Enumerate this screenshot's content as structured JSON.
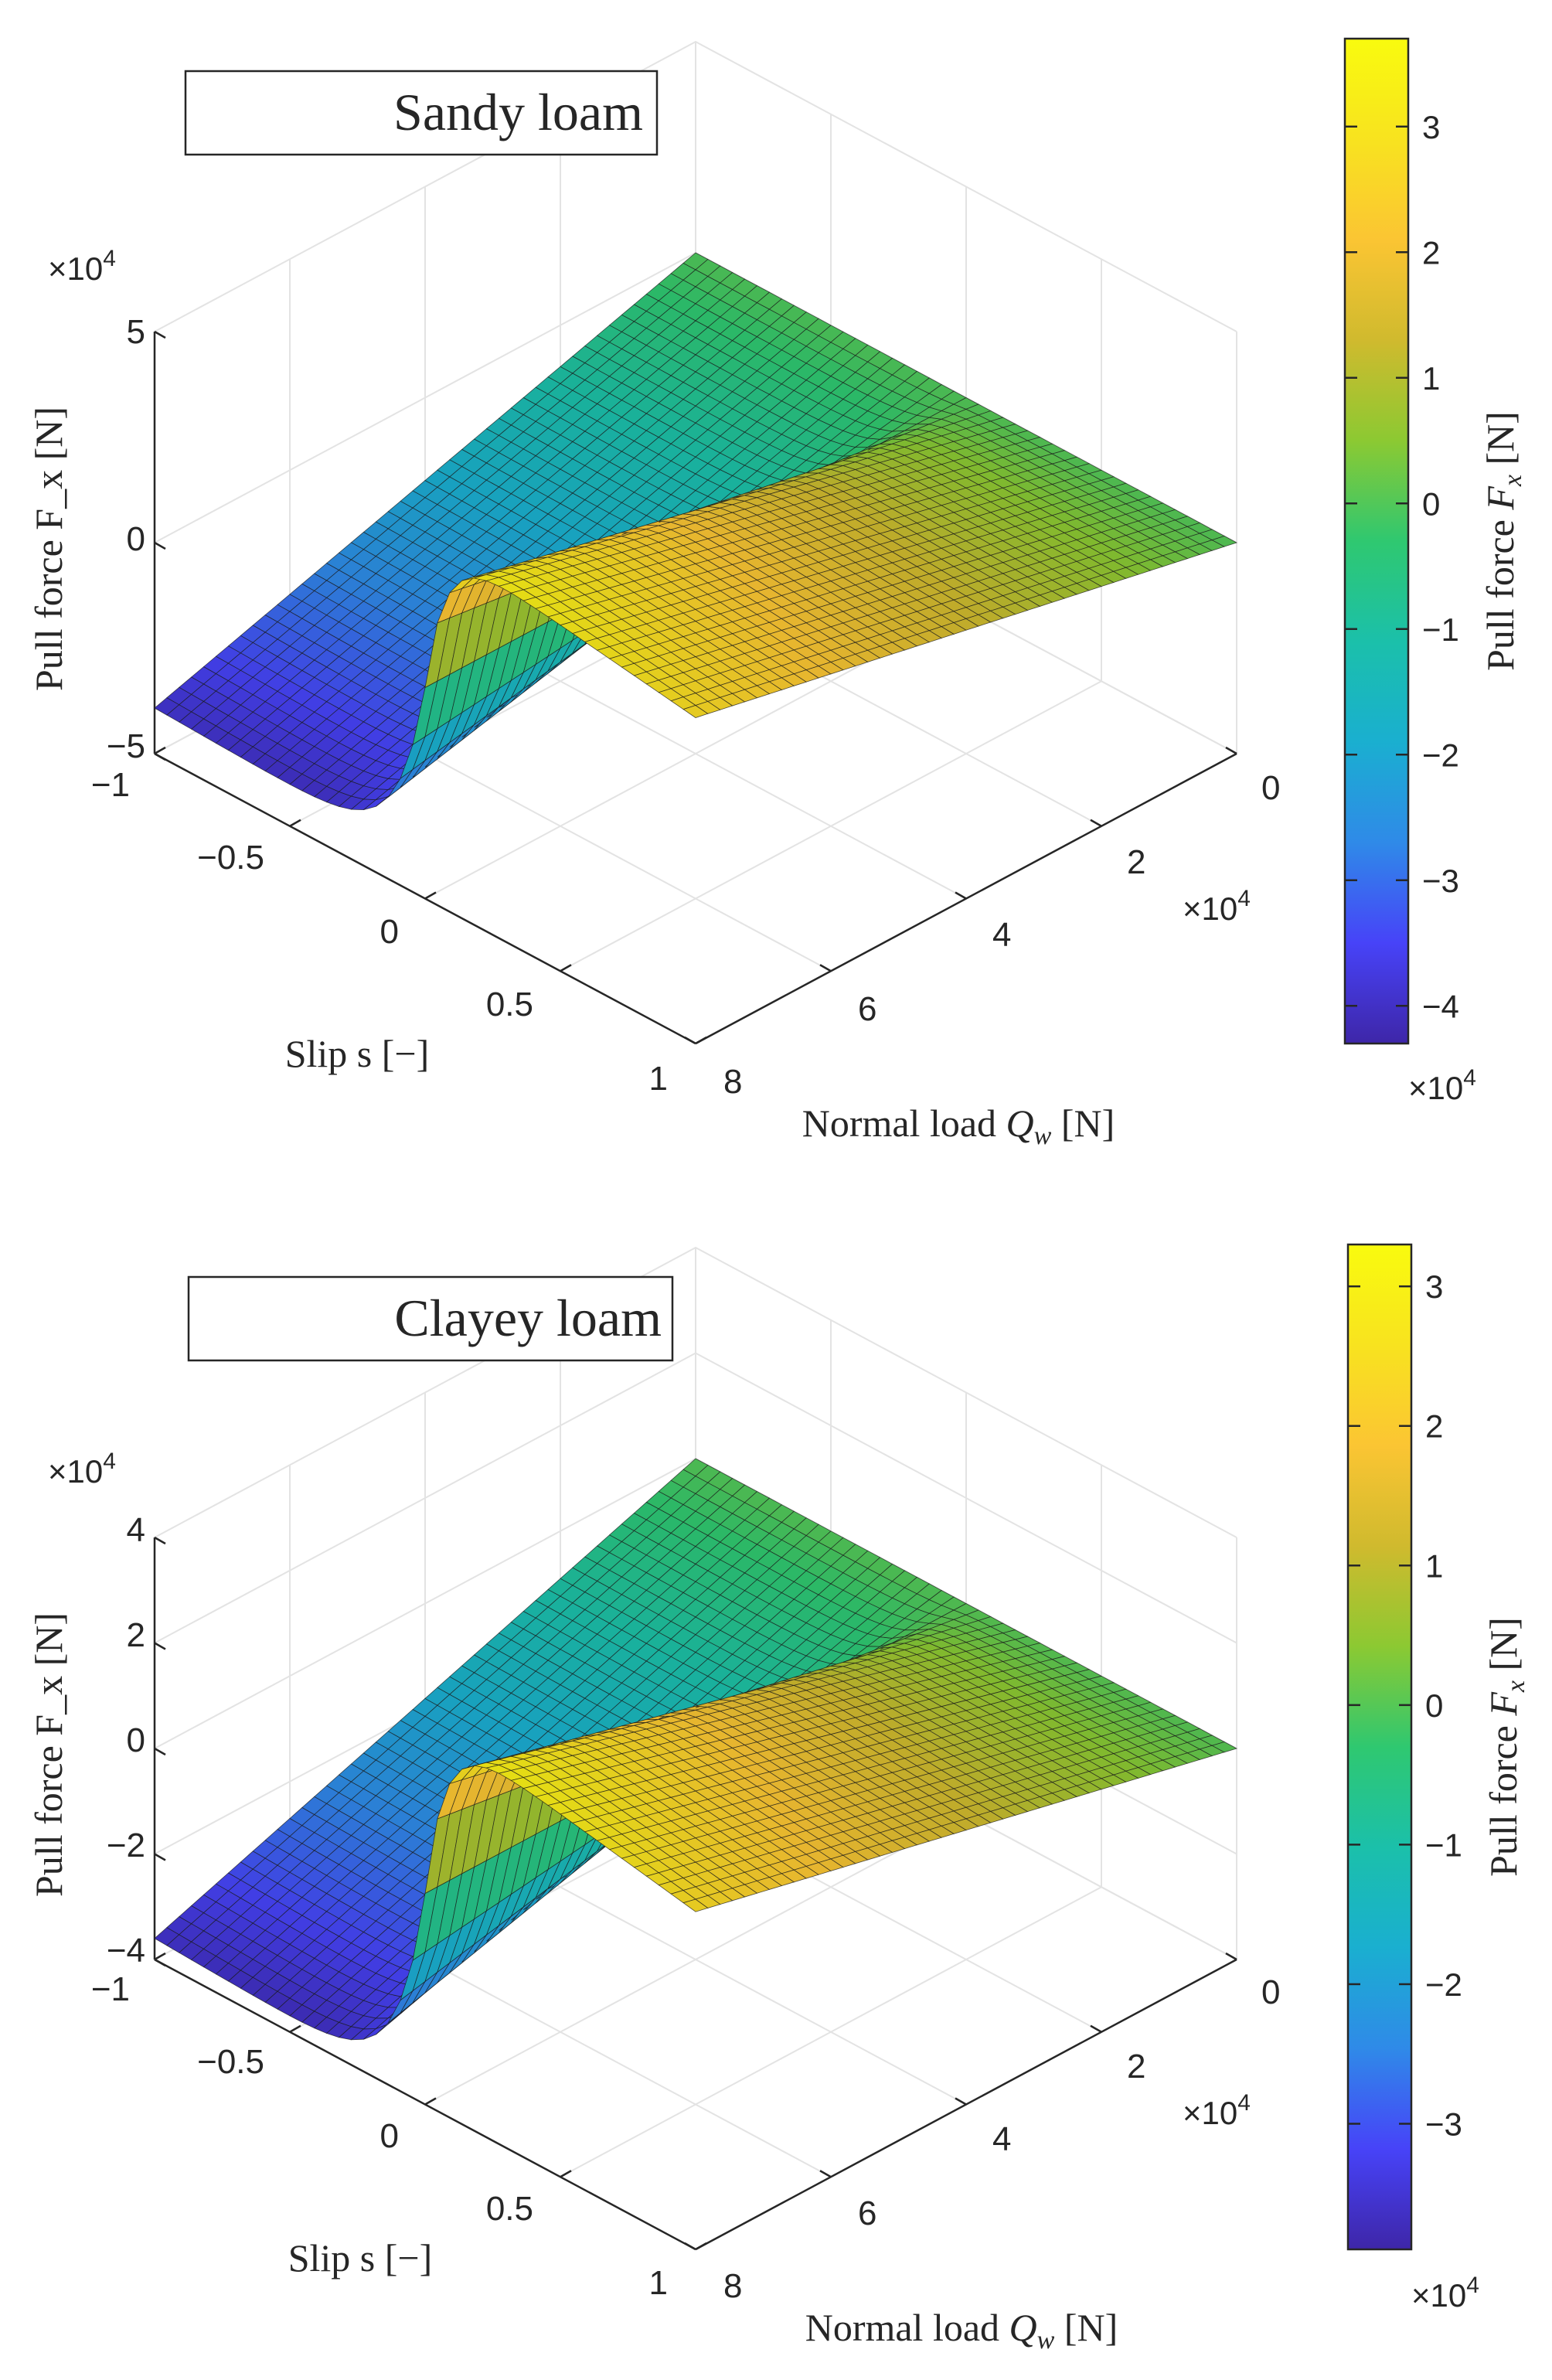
{
  "colormap": [
    "#3e26a8",
    "#4743f8",
    "#2f8ae8",
    "#1aafd0",
    "#1bc0aa",
    "#2fc870",
    "#8cc932",
    "#d0ba2e",
    "#fbc533",
    "#f8e31f",
    "#f9fb0e"
  ],
  "chart_data": [
    {
      "type": "surface",
      "title": "Sandy loam",
      "xlabel": "Slip s [−]",
      "ylabel": "Normal load Q_w [N]",
      "zlabel": "Pull force F_x [N]",
      "x_ticks": [
        "−1",
        "−0.5",
        "0",
        "0.5",
        "1"
      ],
      "y_ticks": [
        "0",
        "2",
        "4",
        "6",
        "8"
      ],
      "y_exponent": "4",
      "z_ticks": [
        "5",
        "0",
        "−5"
      ],
      "z_exponent": "4",
      "colorbar": {
        "label": "Pull force F_x [N]",
        "ticks": [
          "3",
          "2",
          "1",
          "0",
          "−1",
          "−2",
          "−3",
          "−4"
        ],
        "exponent": "4",
        "range": [
          -4.3,
          3.7
        ]
      },
      "xlim": [
        -1,
        1
      ],
      "ylim": [
        0,
        80000
      ],
      "zlim": [
        -50000,
        50000
      ],
      "peak_factor": 0.46,
      "neg_factor": 0.52
    },
    {
      "type": "surface",
      "title": "Clayey loam",
      "xlabel": "Slip s [−]",
      "ylabel": "Normal load Q_w [N]",
      "zlabel": "Pull force F_x [N]",
      "x_ticks": [
        "−1",
        "−0.5",
        "0",
        "0.5",
        "1"
      ],
      "y_ticks": [
        "0",
        "2",
        "4",
        "6",
        "8"
      ],
      "y_exponent": "4",
      "z_ticks": [
        "4",
        "2",
        "0",
        "−2",
        "−4"
      ],
      "z_exponent": "4",
      "colorbar": {
        "label": "Pull force F_x [N]",
        "ticks": [
          "3",
          "2",
          "1",
          "0",
          "−1",
          "−2",
          "−3"
        ],
        "exponent": "4",
        "range": [
          -3.9,
          3.3
        ]
      },
      "xlim": [
        -1,
        1
      ],
      "ylim": [
        0,
        80000
      ],
      "zlim": [
        -40000,
        40000
      ],
      "peak_factor": 0.42,
      "neg_factor": 0.48
    }
  ]
}
